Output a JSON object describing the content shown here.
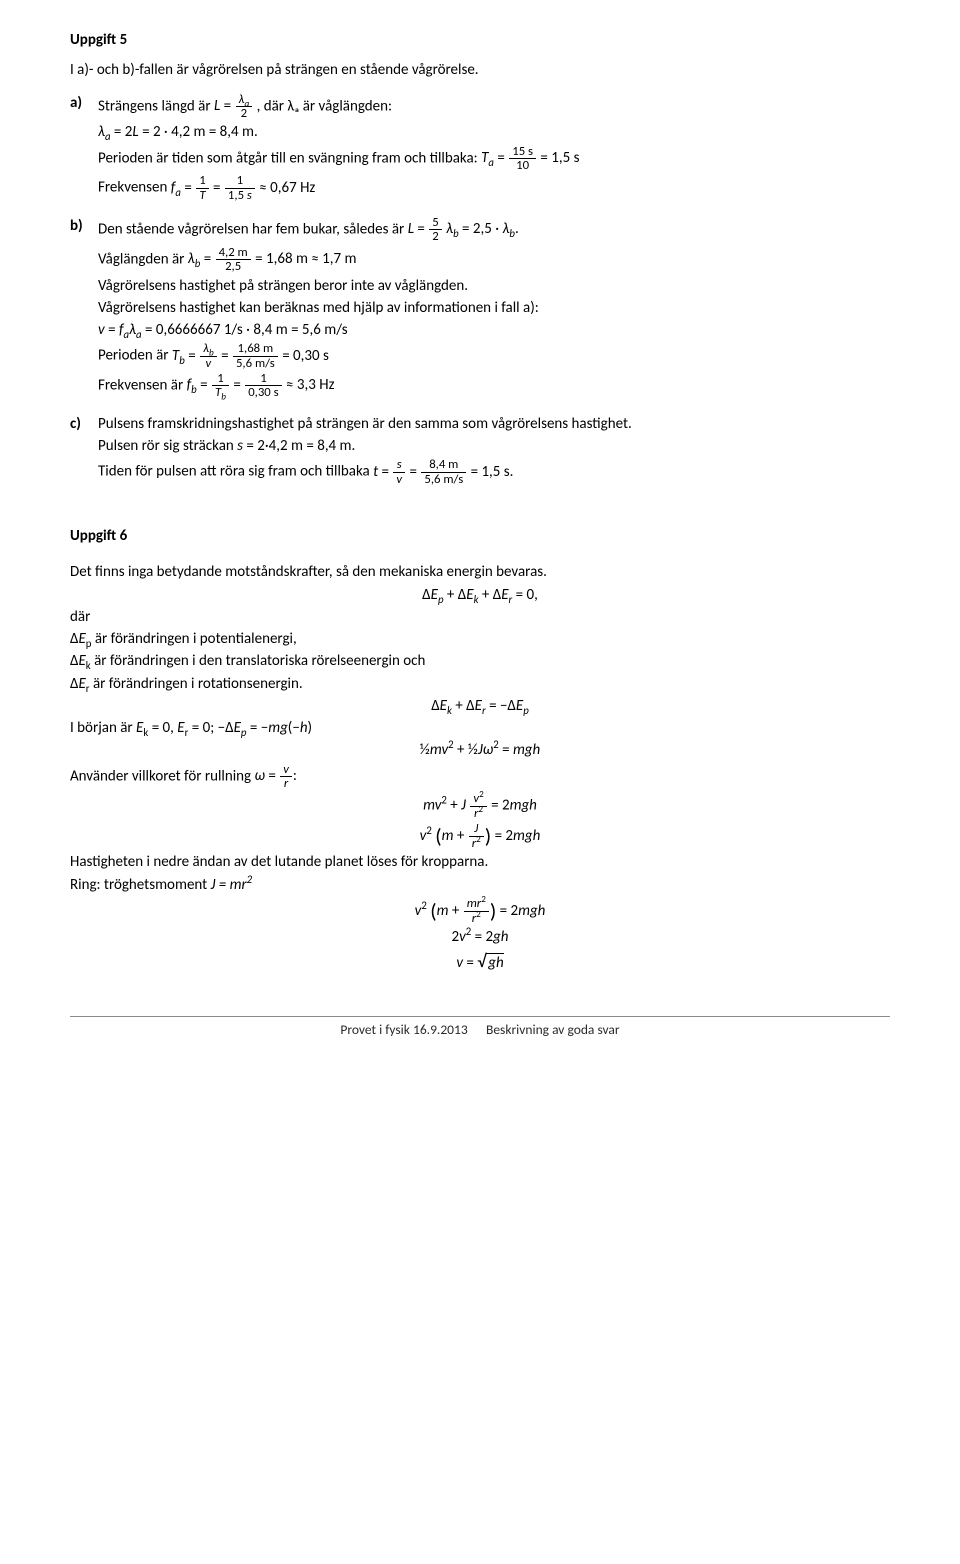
{
  "task5": {
    "heading": "Uppgift 5",
    "intro": "I a)- och b)-fallen är vågrörelsen på strängen en stående vågrörelse.",
    "a": {
      "marker": "a)",
      "line1_pre": "Strängens längd är ",
      "line1_eq": "L = λ_a/2",
      "line1_post": ", där λₐ är våglängden:",
      "line2": "λₐ = 2L = 2 · 4,2 m = 8,4 m.",
      "line3_pre": "Perioden är tiden som åtgår till en svängning fram och tillbaka: ",
      "line3_eq": "Tₐ = 15 s / 10 = 1,5 s",
      "line4_pre": "Frekvensen ",
      "line4_eq": "fₐ = 1/T = 1/(1,5 s) ≈ 0,67 Hz"
    },
    "b": {
      "marker": "b)",
      "line1_pre": "Den stående vågrörelsen har fem bukar, således är ",
      "line1_eq": "L = 5/2 λ_b = 2,5 · λ_b.",
      "line2_pre": "Våglängden är ",
      "line2_eq": "λ_b = 4,2 m / 2,5 = 1,68 m ≈ 1,7 m",
      "line3": "Vågrörelsens hastighet på strängen beror inte av våglängden.",
      "line4": "Vågrörelsens hastighet kan beräknas med hjälp av informationen i fall a):",
      "line5": "v = fₐλₐ = 0,6666667 1/s · 8,4 m = 5,6 m/s",
      "line6_pre": "Perioden är ",
      "line6_eq": "T_b = λ_b/v = 1,68 m / (5,6 m/s) = 0,30 s",
      "line7_pre": "Frekvensen är ",
      "line7_eq": "f_b = 1/T_b = 1/(0,30 s) ≈ 3,3 Hz"
    },
    "c": {
      "marker": "c)",
      "line1": "Pulsens framskridningshastighet på strängen är den samma som vågrörelsens hastighet.",
      "line2": "Pulsen rör sig sträckan s = 2·4,2 m = 8,4 m.",
      "line3_pre": "Tiden för pulsen att röra sig fram och tillbaka ",
      "line3_eq": "t = s/v = 8,4 m / (5,6 m/s) = 1,5 s."
    }
  },
  "task6": {
    "heading": "Uppgift 6",
    "intro": "Det finns inga betydande motståndskrafter, så den mekaniska energin bevaras.",
    "eq1": "ΔEₚ + ΔE_k + ΔE_r = 0,",
    "where": "där",
    "dep": "ΔEₚ är förändringen i potentialenergi,",
    "dek": "ΔE_k är förändringen i den translatoriska rörelseenergin och",
    "der": "ΔE_r är förändringen i rotationsenergin.",
    "eq2": "ΔE_k + ΔE_r  =  −ΔEₚ",
    "init_pre": "I början är E_k = 0, E_r = 0; ",
    "init_eq": "−ΔEₚ = −mg(−h)",
    "eq3": "½mv² + ½Jω² = mgh",
    "rolling_pre": "Använder villkoret för rullning ",
    "rolling_eq": "ω = v/r:",
    "eq4": "mv² + J v²/r² = 2mgh",
    "eq5": "v² (m + J/r²) = 2mgh",
    "solve": "Hastigheten i nedre ändan av det lutande planet löses för kropparna.",
    "ring_pre": "Ring: tröghetsmoment  ",
    "ring_j": "J = mr²",
    "eq6": "v² (m + mr²/r²) = 2mgh",
    "eq7": "2v² = 2gh",
    "eq8": "v = √(gh)"
  },
  "footer": {
    "left": "Provet i fysik 16.9.2013",
    "right": "Beskrivning av goda svar"
  }
}
